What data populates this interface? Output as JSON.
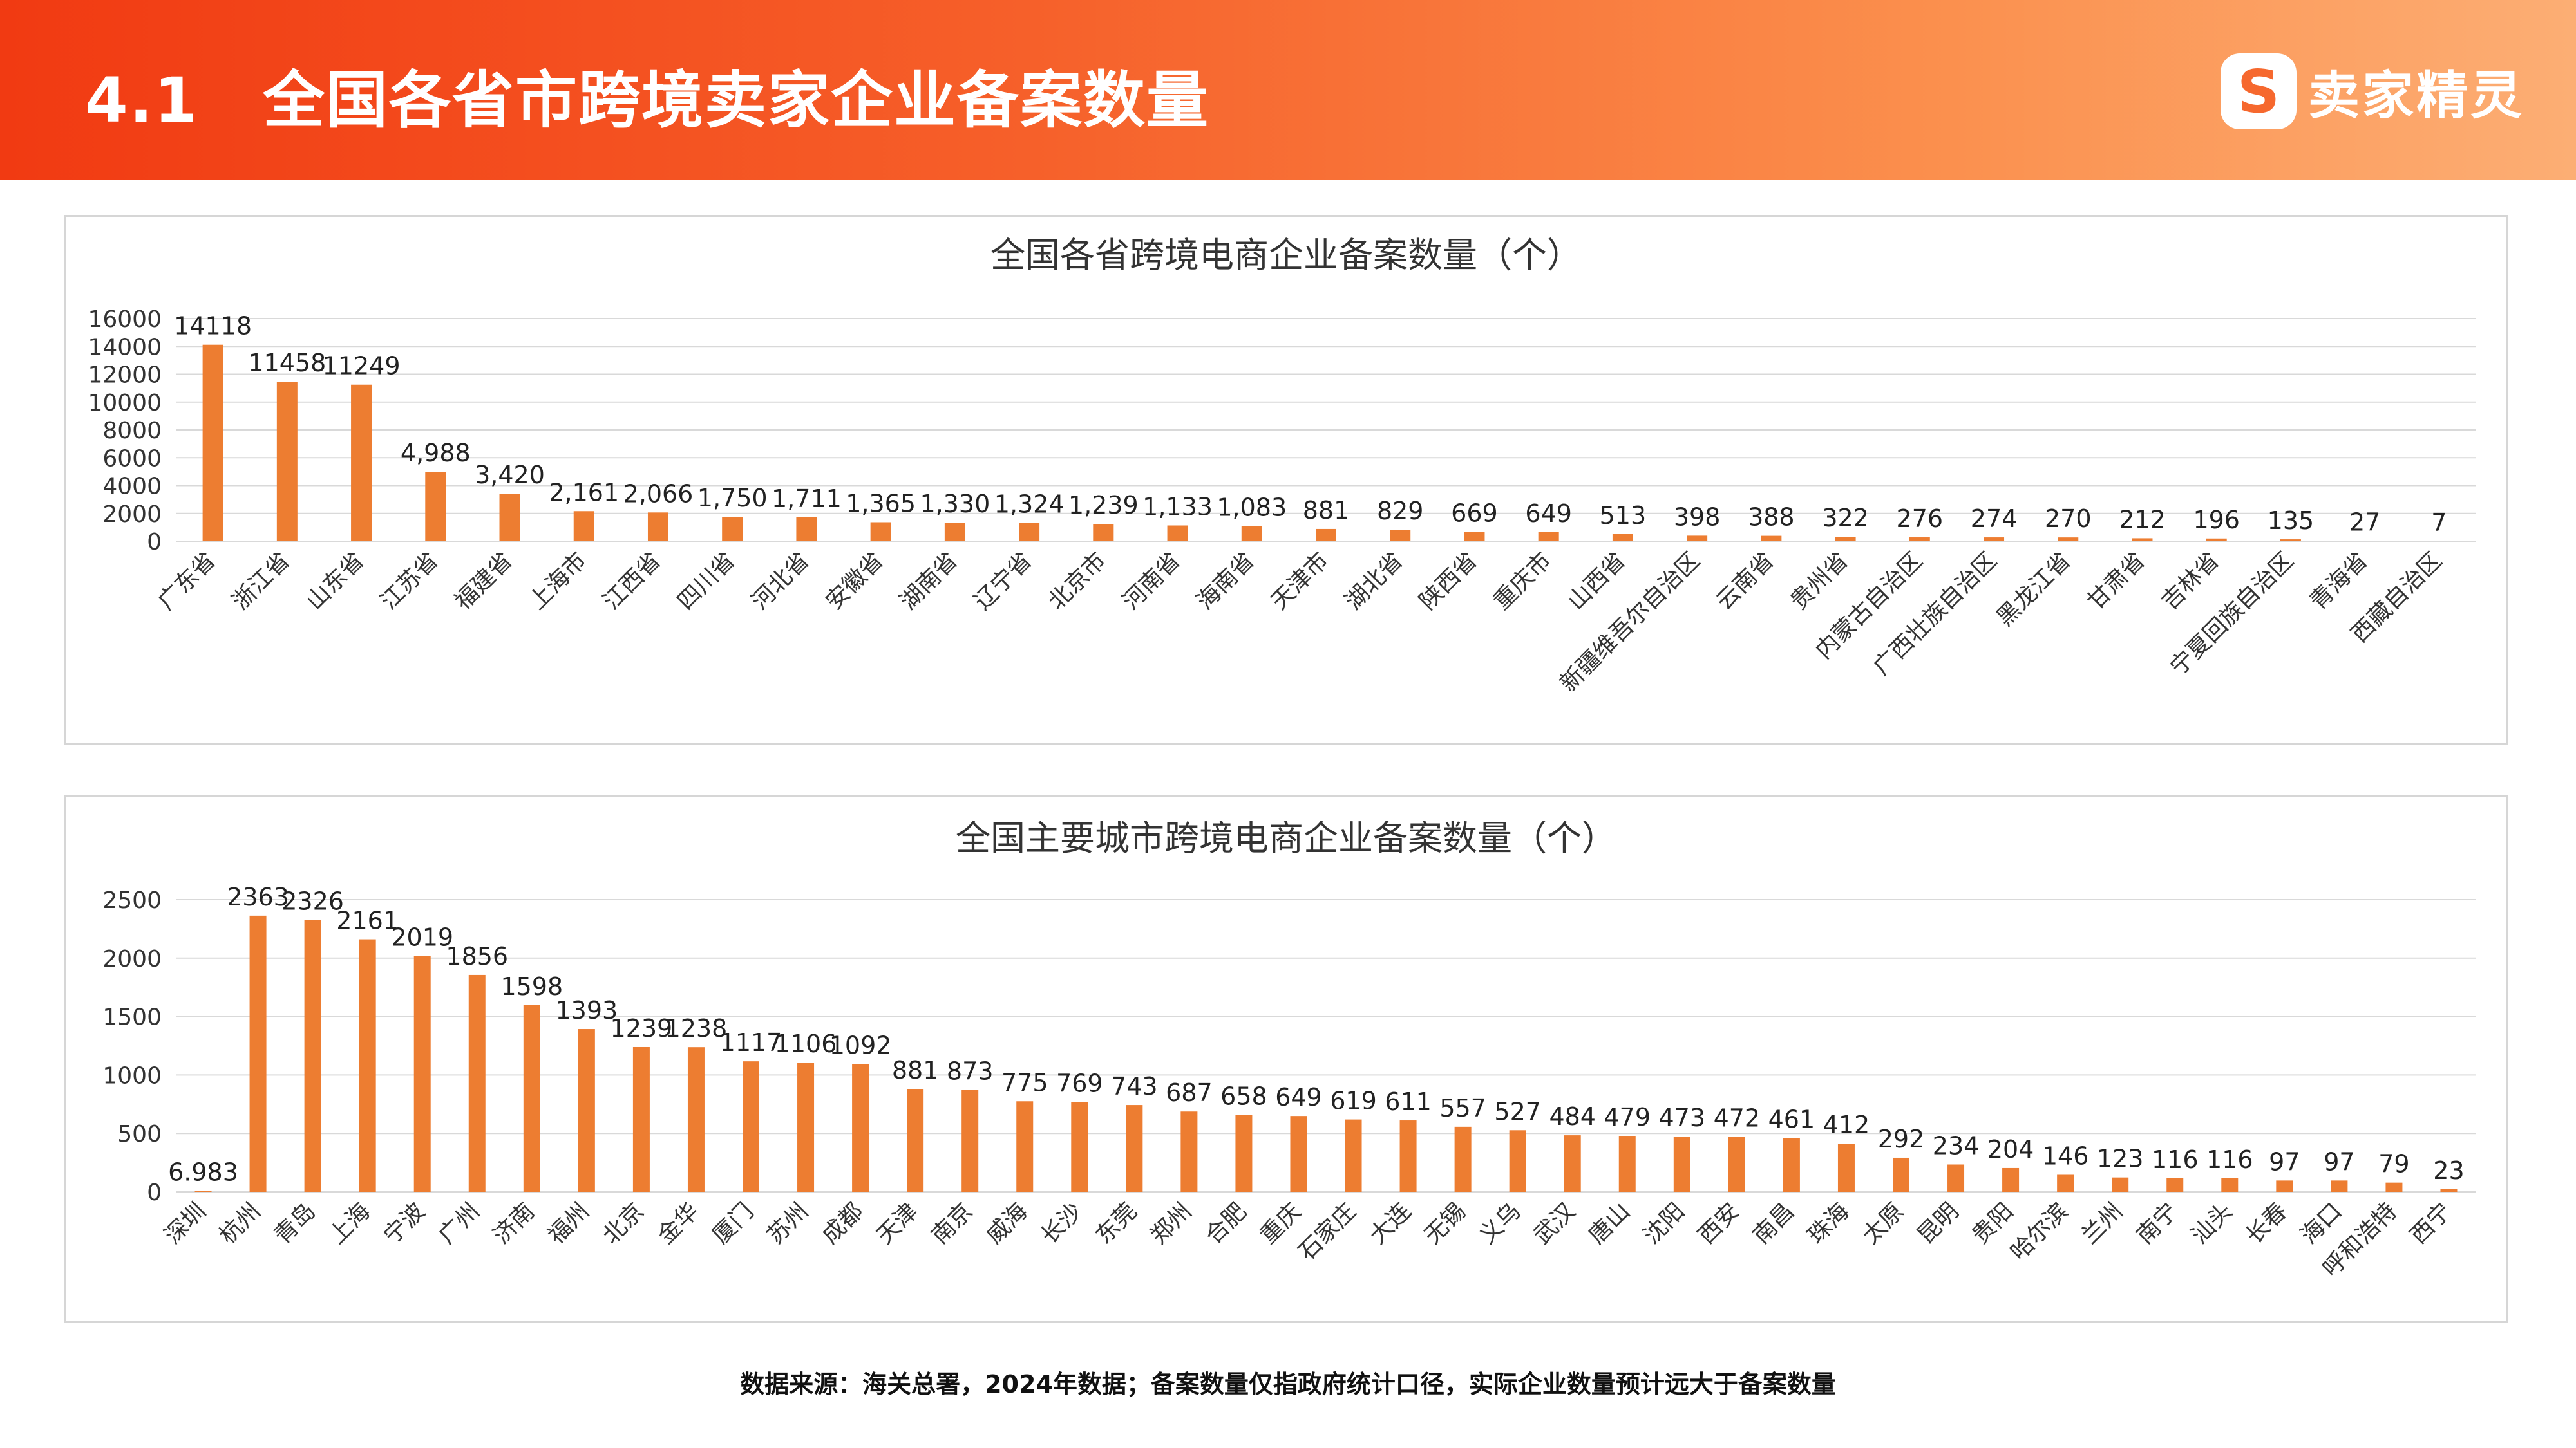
{
  "header": {
    "section_number": "4.1",
    "title": "全国各省市跨境卖家企业备案数量",
    "logo_text": "卖家精灵",
    "logo_glyph": "S"
  },
  "colors": {
    "bar": "#ed7d31",
    "grid": "#d9d9d9"
  },
  "chart_data": [
    {
      "type": "bar",
      "title": "全国各省跨境电商企业备案数量（个）",
      "ylim": [
        0,
        16000
      ],
      "yticks": [
        "0",
        "2000",
        "4000",
        "6000",
        "8000",
        "10000",
        "12000",
        "14000",
        "16000"
      ],
      "grid": true,
      "categories": [
        "广东省",
        "浙江省",
        "山东省",
        "江苏省",
        "福建省",
        "上海市",
        "江西省",
        "四川省",
        "河北省",
        "安徽省",
        "湖南省",
        "辽宁省",
        "北京市",
        "河南省",
        "海南省",
        "天津市",
        "湖北省",
        "陕西省",
        "重庆市",
        "山西省",
        "新疆维吾尔自治区",
        "云南省",
        "贵州省",
        "内蒙古自治区",
        "广西壮族自治区",
        "黑龙江省",
        "甘肃省",
        "吉林省",
        "宁夏回族自治区",
        "青海省",
        "西藏自治区"
      ],
      "values": [
        14118,
        11458,
        11249,
        4988,
        3420,
        2161,
        2066,
        1750,
        1711,
        1365,
        1330,
        1324,
        1239,
        1133,
        1083,
        881,
        829,
        669,
        649,
        513,
        398,
        388,
        322,
        276,
        274,
        270,
        212,
        196,
        135,
        27,
        7
      ],
      "labels": [
        "14118",
        "11458",
        "11249",
        "4,988",
        "3,420",
        "2,161",
        "2,066",
        "1,750",
        "1,711",
        "1,365",
        "1,330",
        "1,324",
        "1,239",
        "1,133",
        "1,083",
        "881",
        "829",
        "669",
        "649",
        "513",
        "398",
        "388",
        "322",
        "276",
        "274",
        "270",
        "212",
        "196",
        "135",
        "27",
        "7"
      ]
    },
    {
      "type": "bar",
      "title": "全国主要城市跨境电商企业备案数量（个）",
      "ylim": [
        0,
        2500
      ],
      "yticks": [
        "0",
        "500",
        "1000",
        "1500",
        "2000",
        "2500"
      ],
      "grid": true,
      "categories": [
        "深圳",
        "杭州",
        "青岛",
        "上海",
        "宁波",
        "广州",
        "济南",
        "福州",
        "北京",
        "金华",
        "厦门",
        "苏州",
        "成都",
        "天津",
        "南京",
        "威海",
        "长沙",
        "东莞",
        "郑州",
        "合肥",
        "重庆",
        "石家庄",
        "大连",
        "无锡",
        "义乌",
        "武汉",
        "唐山",
        "沈阳",
        "西安",
        "南昌",
        "珠海",
        "太原",
        "昆明",
        "贵阳",
        "哈尔滨",
        "兰州",
        "南宁",
        "汕头",
        "长春",
        "海口",
        "呼和浩特",
        "西宁"
      ],
      "values": [
        6.983,
        2363,
        2326,
        2161,
        2019,
        1856,
        1598,
        1393,
        1239,
        1238,
        1117,
        1106,
        1092,
        881,
        873,
        775,
        769,
        743,
        687,
        658,
        649,
        619,
        611,
        557,
        527,
        484,
        479,
        473,
        472,
        461,
        412,
        292,
        234,
        204,
        146,
        123,
        116,
        116,
        97,
        97,
        79,
        23
      ],
      "labels": [
        "6.983",
        "2363",
        "2326",
        "2161",
        "2019",
        "1856",
        "1598",
        "1393",
        "1239",
        "1238",
        "1117",
        "1106",
        "1092",
        "881",
        "873",
        "775",
        "769",
        "743",
        "687",
        "658",
        "649",
        "619",
        "611",
        "557",
        "527",
        "484",
        "479",
        "473",
        "472",
        "461",
        "412",
        "292",
        "234",
        "204",
        "146",
        "123",
        "116",
        "116",
        "97",
        "97",
        "79",
        "23"
      ]
    }
  ],
  "source_note": "数据来源：海关总署，2024年数据；备案数量仅指政府统计口径，实际企业数量预计远大于备案数量"
}
